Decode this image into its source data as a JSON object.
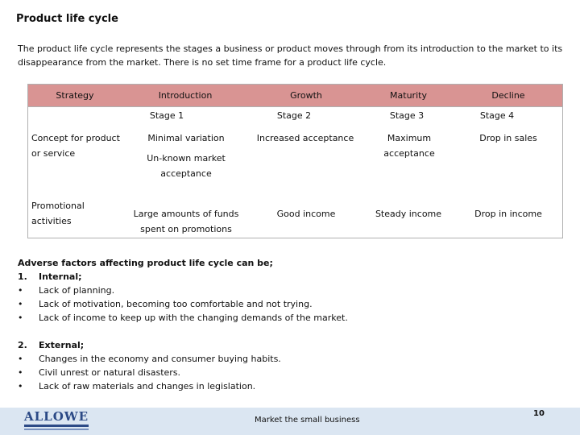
{
  "page": {
    "title": "Product life cycle",
    "intro": "The product life cycle represents the stages a business or product moves through from its introduction to the market to its disappearance from the market. There is no set time frame for a product life cycle."
  },
  "table": {
    "header_color": "#d99493",
    "headers": [
      "Strategy",
      "Introduction",
      "Growth",
      "Maturity",
      "Decline"
    ],
    "stages": [
      "Stage 1",
      "Stage 2",
      "Stage 3",
      "Stage 4"
    ],
    "rows": [
      {
        "label": "Concept for product or service",
        "introduction": "Minimal variation",
        "introduction_extra": "Un-known market acceptance",
        "growth": "Increased  acceptance",
        "maturity": "Maximum acceptance",
        "decline": "Drop in sales"
      },
      {
        "label": "Promotional activities",
        "introduction": "Large amounts of funds spent on promotions",
        "growth": "Good income",
        "maturity": "Steady income",
        "decline": "Drop in income"
      }
    ]
  },
  "adverse": {
    "heading": "Adverse factors affecting product life cycle can be;",
    "internal": {
      "number": "1.",
      "label": "Internal;",
      "items": [
        "Lack of planning.",
        "Lack of motivation, becoming too comfortable and not trying.",
        "Lack of income to keep up with the changing demands of the market."
      ]
    },
    "external": {
      "number": "2.",
      "label": "External;",
      "items": [
        "Changes in the economy and consumer buying habits.",
        "Civil unrest or natural disasters.",
        "Lack of raw materials and changes in legislation."
      ]
    },
    "bullet": "•"
  },
  "footer": {
    "logo_text": "ALLOWE",
    "logo_color": "#2c4a86",
    "band_color": "#dbe6f2",
    "tagline": "Market the small business",
    "page_number": "10"
  }
}
